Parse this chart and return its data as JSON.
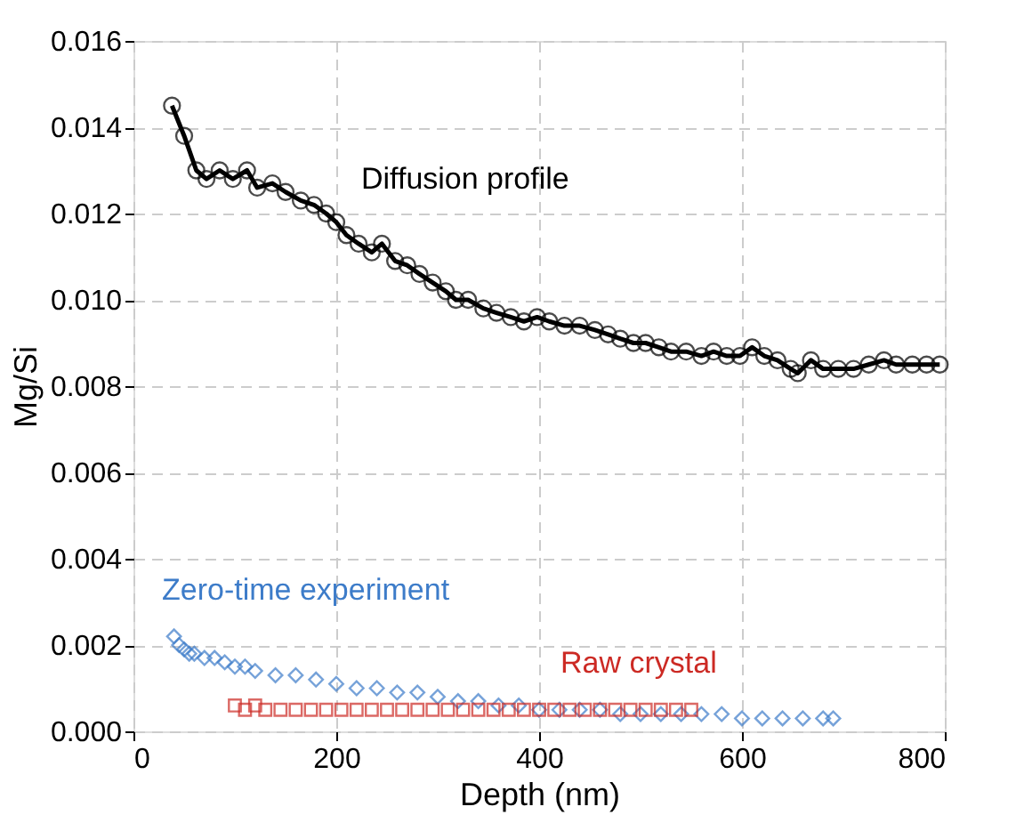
{
  "chart_data": {
    "type": "scatter",
    "xlabel": "Depth (nm)",
    "ylabel": "Mg/Si",
    "xlim": [
      0,
      800
    ],
    "xticks": [
      0,
      200,
      400,
      600,
      800
    ],
    "ylim": [
      0,
      0.016
    ],
    "yticks": [
      {
        "value": 0,
        "label": "0.000"
      },
      {
        "value": 0.002,
        "label": "0.002"
      },
      {
        "value": 0.004,
        "label": "0.004"
      },
      {
        "value": 0.006,
        "label": "0.006"
      },
      {
        "value": 0.008,
        "label": "0.008"
      },
      {
        "value": 0.01,
        "label": "0.010"
      },
      {
        "value": 0.012,
        "label": "0.012"
      },
      {
        "value": 0.014,
        "label": "0.014"
      },
      {
        "value": 0.016,
        "label": "0.016"
      }
    ],
    "grid": true,
    "series": [
      {
        "name": "Diffusion profile",
        "type": "line",
        "marker": "circle",
        "color": "#000000",
        "x": [
          38,
          50,
          62,
          72,
          85,
          98,
          112,
          122,
          137,
          150,
          165,
          178,
          190,
          200,
          210,
          222,
          235,
          245,
          258,
          270,
          282,
          295,
          308,
          318,
          330,
          345,
          358,
          372,
          385,
          398,
          410,
          425,
          440,
          455,
          468,
          480,
          493,
          505,
          518,
          530,
          545,
          560,
          572,
          585,
          598,
          610,
          622,
          635,
          648,
          655,
          668,
          680,
          695,
          710,
          725,
          740,
          752,
          768,
          782,
          795
        ],
        "values": [
          0.0145,
          0.0138,
          0.013,
          0.0128,
          0.013,
          0.0128,
          0.013,
          0.0126,
          0.0127,
          0.0125,
          0.0123,
          0.0122,
          0.012,
          0.0118,
          0.0115,
          0.0113,
          0.0111,
          0.0113,
          0.0109,
          0.0108,
          0.0106,
          0.0104,
          0.0102,
          0.01,
          0.01,
          0.0098,
          0.0097,
          0.0096,
          0.0095,
          0.0096,
          0.0095,
          0.0094,
          0.0094,
          0.0093,
          0.0092,
          0.0091,
          0.009,
          0.009,
          0.0089,
          0.0088,
          0.0088,
          0.0087,
          0.0088,
          0.0087,
          0.0087,
          0.0089,
          0.0087,
          0.0086,
          0.0084,
          0.0083,
          0.0086,
          0.0084,
          0.0084,
          0.0084,
          0.0085,
          0.0086,
          0.0085,
          0.0085,
          0.0085,
          0.0085
        ]
      },
      {
        "name": "Zero-time experiment",
        "marker": "diamond",
        "color": "#3d7cc9",
        "x": [
          40,
          45,
          50,
          55,
          60,
          70,
          80,
          90,
          100,
          110,
          120,
          140,
          160,
          180,
          200,
          220,
          240,
          260,
          280,
          300,
          320,
          340,
          360,
          380,
          400,
          420,
          440,
          460,
          480,
          500,
          520,
          540,
          560,
          580,
          600,
          620,
          640,
          660,
          680,
          690
        ],
        "values": [
          0.0022,
          0.002,
          0.0019,
          0.0018,
          0.0018,
          0.0017,
          0.0017,
          0.0016,
          0.0015,
          0.0015,
          0.0014,
          0.0013,
          0.0013,
          0.0012,
          0.0011,
          0.001,
          0.001,
          0.0009,
          0.0009,
          0.0008,
          0.0007,
          0.0007,
          0.0006,
          0.0006,
          0.0005,
          0.0005,
          0.0005,
          0.0005,
          0.0004,
          0.0004,
          0.0004,
          0.0004,
          0.0004,
          0.0004,
          0.0003,
          0.0003,
          0.0003,
          0.0003,
          0.0003,
          0.0003
        ]
      },
      {
        "name": "Raw crystal",
        "marker": "square",
        "color": "#cc2a24",
        "x": [
          100,
          110,
          120,
          130,
          145,
          160,
          175,
          190,
          205,
          220,
          235,
          250,
          265,
          280,
          295,
          310,
          325,
          340,
          355,
          370,
          385,
          400,
          415,
          430,
          445,
          460,
          475,
          490,
          505,
          520,
          535,
          550
        ],
        "values": [
          0.0006,
          0.0005,
          0.0006,
          0.0005,
          0.0005,
          0.0005,
          0.0005,
          0.0005,
          0.0005,
          0.0005,
          0.0005,
          0.0005,
          0.0005,
          0.0005,
          0.0005,
          0.0005,
          0.0005,
          0.0005,
          0.0005,
          0.0005,
          0.0005,
          0.0005,
          0.0005,
          0.0005,
          0.0005,
          0.0005,
          0.0005,
          0.0005,
          0.0005,
          0.0005,
          0.0005,
          0.0005
        ]
      }
    ]
  }
}
